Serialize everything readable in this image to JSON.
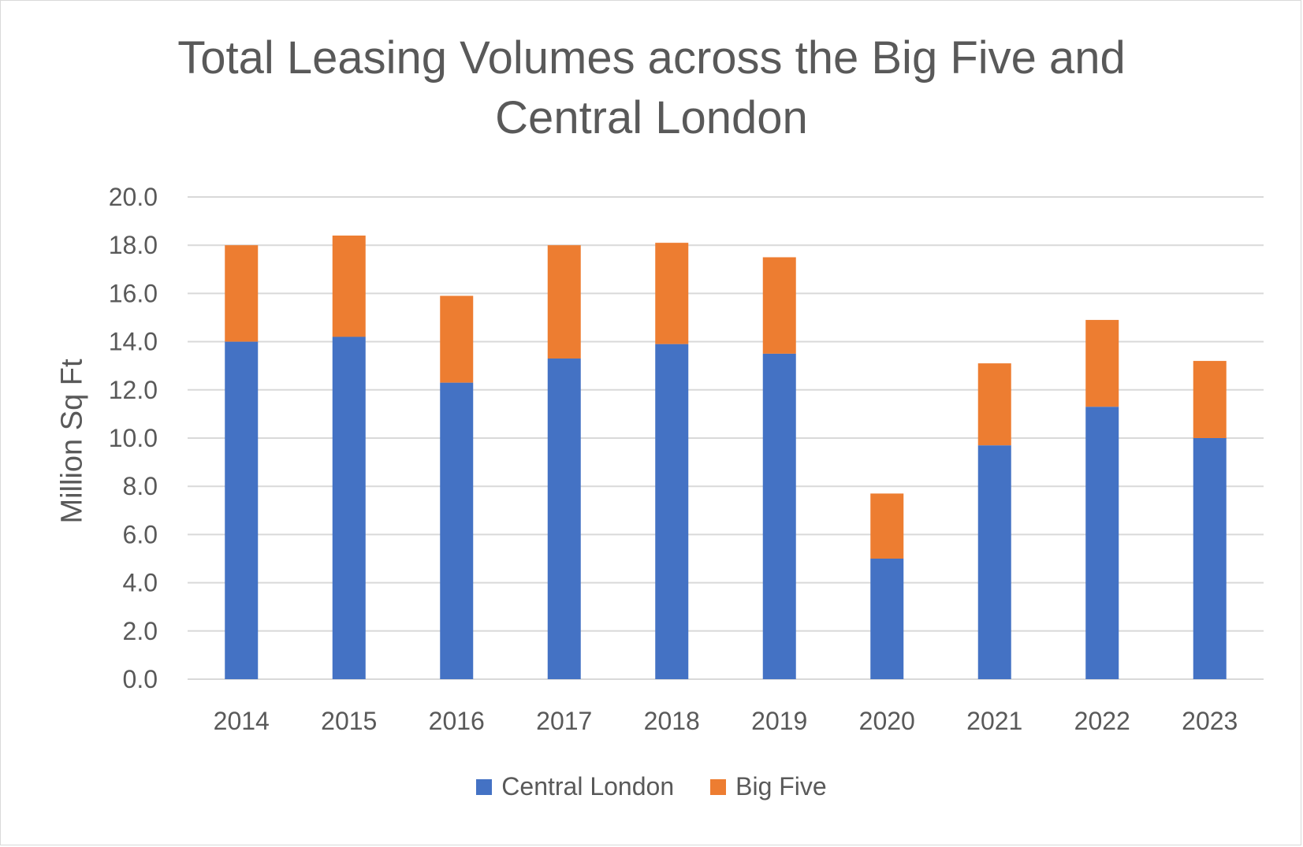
{
  "chart_data": {
    "type": "bar",
    "stacked": true,
    "title": "Total Leasing Volumes across the Big Five and Central London",
    "xlabel": "",
    "ylabel": "Million Sq Ft",
    "ylim": [
      0,
      20
    ],
    "y_ticks": [
      "0.0",
      "2.0",
      "4.0",
      "6.0",
      "8.0",
      "10.0",
      "12.0",
      "14.0",
      "16.0",
      "18.0",
      "20.0"
    ],
    "grid": true,
    "legend_position": "bottom",
    "categories": [
      "2014",
      "2015",
      "2016",
      "2017",
      "2018",
      "2019",
      "2020",
      "2021",
      "2022",
      "2023"
    ],
    "series": [
      {
        "name": "Central London",
        "color": "#4472c4",
        "values": [
          14.0,
          14.2,
          12.3,
          13.3,
          13.9,
          13.5,
          5.0,
          9.7,
          11.3,
          10.0
        ]
      },
      {
        "name": "Big Five",
        "color": "#ed7d31",
        "values": [
          4.0,
          4.2,
          3.6,
          4.7,
          4.2,
          4.0,
          2.7,
          3.4,
          3.6,
          3.2
        ]
      }
    ]
  }
}
